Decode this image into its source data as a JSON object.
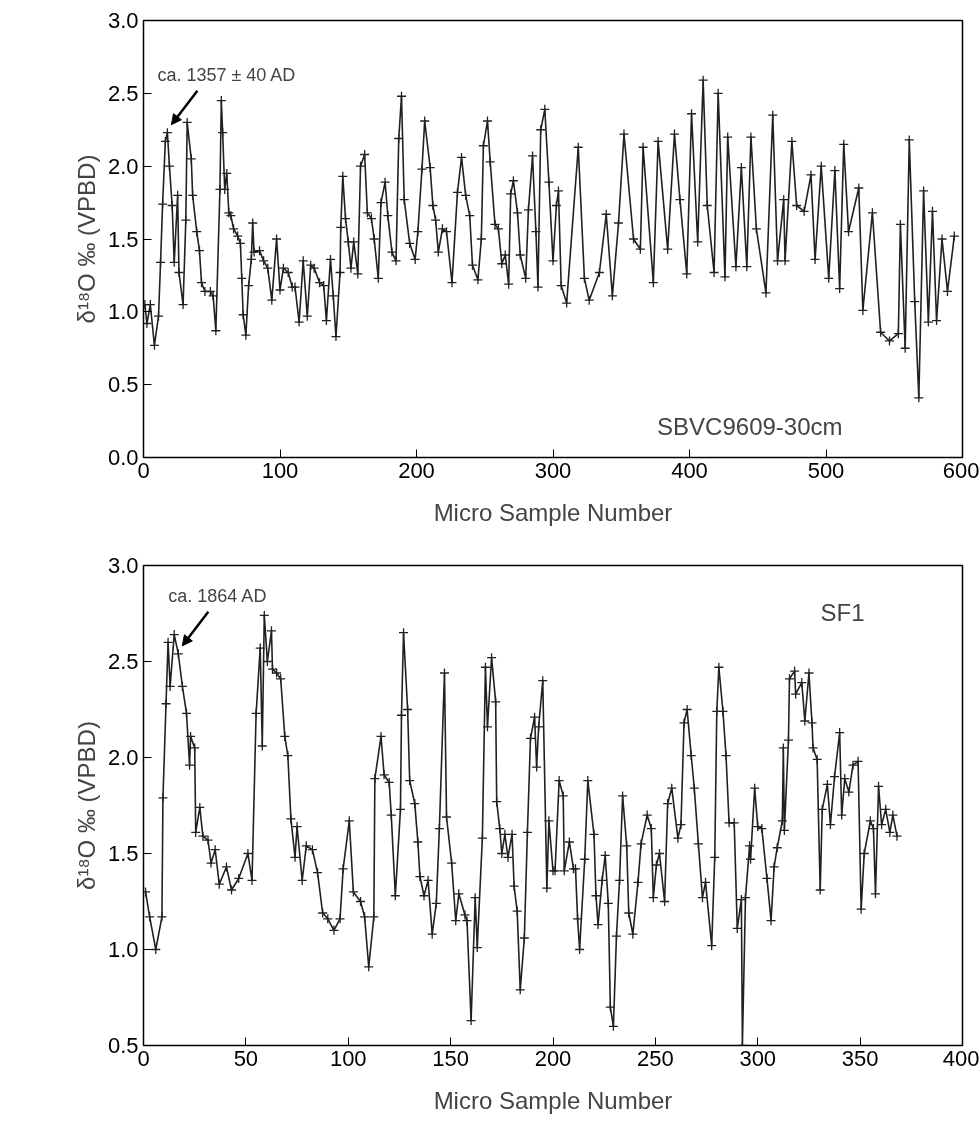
{
  "chart_data": [
    {
      "type": "line",
      "xlabel": "Micro Sample Number",
      "ylabel": "δ¹⁸O ‰ (VPBD)",
      "marker": "cross",
      "line_style": "solid",
      "grid": false,
      "xlim": [
        0,
        600
      ],
      "xticks": [
        0,
        100,
        200,
        300,
        400,
        500,
        600
      ],
      "ylim": [
        0,
        3
      ],
      "yticks": [
        {
          "value": 0,
          "label": "0.0"
        },
        0.5,
        {
          "value": 1,
          "label": "1.0"
        },
        1.5,
        {
          "value": 2,
          "label": "2.0"
        },
        2.5,
        {
          "value": 3,
          "label": "3.0"
        }
      ],
      "annotations": [
        {
          "text": "ca. 1357 ± 40 AD",
          "x": 17.5,
          "y": 2.23
        },
        "SBVC9609-30cm"
      ],
      "series": [
        {
          "color": "#231f20",
          "x": [
            1,
            2.5,
            5,
            8,
            11,
            12.5,
            14,
            16,
            17.5,
            19,
            21,
            22.5,
            25,
            26,
            29,
            31,
            32,
            35,
            36,
            39,
            41,
            42.5,
            45,
            49,
            51,
            53,
            56,
            57,
            58,
            59.5,
            61,
            62.5,
            64,
            66,
            69,
            71,
            72,
            73,
            75,
            77,
            79,
            80,
            81,
            85,
            88,
            91,
            94,
            97.5,
            100,
            102.5,
            106,
            109,
            111,
            114,
            117,
            120,
            122.5,
            125,
            129,
            132,
            134,
            137,
            139,
            141,
            144,
            144.5,
            146,
            148,
            150,
            152,
            154,
            157,
            159,
            162,
            164,
            167,
            169,
            172,
            174,
            177,
            179,
            182,
            185,
            187,
            189,
            191,
            195,
            199,
            201,
            204,
            206,
            210,
            212,
            214,
            216,
            219,
            222,
            226,
            230,
            233,
            236,
            239,
            241,
            245,
            247.5,
            249,
            252,
            254,
            257.5,
            260,
            262.5,
            265,
            267.5,
            269,
            271,
            274,
            276,
            280,
            282,
            285,
            287.5,
            289,
            291,
            294,
            297,
            300,
            302.5,
            304,
            306,
            310,
            318.5,
            323,
            326.5,
            334,
            339,
            343.5,
            348,
            352,
            359,
            364,
            366,
            373.5,
            377,
            384,
            389,
            393,
            398,
            401.5,
            406,
            410,
            413,
            418,
            421,
            426,
            428,
            434,
            438,
            442,
            445,
            449,
            456,
            461,
            464.5,
            469,
            470,
            475,
            478.5,
            484,
            489,
            492,
            496.5,
            502,
            506.5,
            510,
            513,
            516.5,
            524,
            527,
            534,
            540,
            546.5,
            553,
            554.5,
            558,
            561,
            565,
            568,
            571.5,
            575,
            578,
            581,
            585,
            589,
            594
          ],
          "values": [
            1.05,
            0.92,
            1.05,
            0.77,
            0.97,
            1.34,
            1.74,
            2.17,
            2.23,
            2.0,
            1.73,
            1.34,
            1.8,
            1.27,
            1.05,
            1.63,
            2.3,
            2.05,
            1.8,
            1.55,
            1.42,
            1.2,
            1.14,
            1.14,
            1.11,
            0.87,
            1.84,
            2.45,
            2.23,
            1.84,
            1.95,
            1.68,
            1.66,
            1.57,
            1.52,
            1.47,
            1.23,
            0.98,
            0.84,
            1.18,
            1.36,
            1.61,
            1.41,
            1.42,
            1.35,
            1.3,
            1.08,
            1.5,
            1.15,
            1.3,
            1.27,
            1.17,
            1.17,
            0.93,
            1.35,
            0.97,
            1.32,
            1.3,
            1.2,
            1.18,
            0.94,
            1.36,
            1.11,
            0.83,
            1.27,
            1.58,
            1.93,
            1.64,
            1.48,
            1.3,
            1.48,
            1.26,
            2.0,
            2.08,
            1.68,
            1.64,
            1.5,
            1.23,
            1.75,
            1.89,
            1.66,
            1.41,
            1.35,
            2.19,
            2.48,
            1.77,
            1.47,
            1.36,
            1.55,
            1.98,
            2.31,
            1.99,
            1.73,
            1.63,
            1.41,
            1.57,
            1.55,
            1.2,
            1.82,
            2.06,
            1.8,
            1.66,
            1.32,
            1.22,
            1.5,
            2.14,
            2.31,
            2.03,
            1.6,
            1.57,
            1.33,
            1.39,
            1.19,
            1.81,
            1.9,
            1.68,
            1.39,
            1.23,
            1.7,
            2.07,
            1.55,
            1.17,
            2.25,
            2.39,
            1.89,
            1.35,
            1.73,
            1.83,
            1.18,
            1.06,
            2.13,
            1.23,
            1.08,
            1.27,
            1.67,
            1.11,
            1.61,
            2.22,
            1.5,
            1.43,
            2.13,
            1.2,
            2.17,
            1.43,
            2.22,
            1.77,
            1.26,
            2.36,
            1.48,
            2.59,
            1.73,
            1.27,
            2.5,
            1.24,
            2.2,
            1.31,
            1.99,
            1.31,
            2.2,
            1.57,
            1.13,
            2.35,
            1.35,
            1.77,
            1.35,
            2.17,
            1.73,
            1.69,
            1.94,
            1.36,
            2.0,
            1.23,
            1.97,
            1.16,
            2.15,
            1.55,
            1.85,
            1.01,
            1.68,
            0.86,
            0.8,
            0.85,
            1.6,
            0.75,
            2.18,
            1.07,
            0.41,
            1.83,
            0.93,
            1.69,
            0.94,
            1.5,
            1.14,
            1.52
          ]
        }
      ]
    },
    {
      "type": "line",
      "xlabel": "Micro Sample Number",
      "ylabel": "δ¹⁸O ‰ (VPBD)",
      "marker": "cross",
      "line_style": "solid",
      "grid": false,
      "xlim": [
        0,
        400
      ],
      "xticks": [
        0,
        50,
        100,
        150,
        200,
        250,
        300,
        350,
        400
      ],
      "ylim": [
        0.5,
        3
      ],
      "yticks": [
        0.5,
        {
          "value": 1,
          "label": "1.0"
        },
        1.5,
        {
          "value": 2,
          "label": "2.0"
        },
        2.5,
        {
          "value": 3,
          "label": "3.0"
        }
      ],
      "annotations": [
        {
          "text": "ca. 1864 AD",
          "x": 17,
          "y": 2.54
        },
        "SF1"
      ],
      "series": [
        {
          "color": "#231f20",
          "x": [
            1,
            3,
            6,
            9,
            9.5,
            11,
            12,
            13,
            15,
            17,
            19,
            21,
            22.5,
            23,
            25,
            25.5,
            27.5,
            29,
            31.5,
            33,
            35,
            37,
            40.5,
            43,
            46.5,
            51,
            53,
            55,
            57,
            58,
            59,
            60.5,
            62.5,
            63,
            65,
            67,
            69,
            70.5,
            72,
            74,
            75,
            77.5,
            79.5,
            82.5,
            85,
            87.5,
            90,
            93,
            96,
            97.5,
            100.5,
            102.5,
            106,
            108,
            110,
            112.5,
            113,
            116,
            117.5,
            120,
            121,
            123,
            125.5,
            126,
            127,
            129,
            130,
            132.5,
            134,
            135,
            137,
            139,
            141,
            143,
            144.5,
            147,
            148,
            150.5,
            152.5,
            154,
            157,
            158,
            160,
            162,
            163,
            165.5,
            167,
            168,
            170,
            172,
            172.5,
            174,
            175,
            176.5,
            178,
            180,
            181,
            182.5,
            184,
            186,
            187.5,
            189,
            191,
            192,
            193,
            195,
            197,
            198,
            200,
            201,
            203,
            205,
            205.5,
            208,
            210,
            211,
            212,
            213,
            215.5,
            217,
            220,
            221,
            222,
            224,
            225.5,
            227,
            228,
            229.5,
            231,
            232.5,
            234,
            236,
            237,
            239,
            241.5,
            243,
            246,
            248,
            249,
            250.5,
            252,
            254.5,
            256,
            258,
            261,
            262.5,
            264,
            265.5,
            267.5,
            269,
            271,
            273,
            274.5,
            277.5,
            279,
            280,
            281,
            283,
            284.5,
            286,
            288.5,
            290,
            292,
            292.5,
            294,
            296,
            296.5,
            298.5,
            300,
            302,
            304.5,
            306.5,
            308,
            309.5,
            312,
            312.5,
            313,
            315,
            315.5,
            318,
            318.5,
            321.5,
            323,
            325,
            326.5,
            327,
            329,
            330.5,
            331.5,
            334,
            335.5,
            337.5,
            340,
            341,
            342.5,
            344.5,
            346.5,
            349,
            350.5,
            352,
            355,
            356.5,
            357.5,
            359,
            360.5,
            362.5,
            364.5,
            366,
            368
          ],
          "values": [
            1.3,
            1.17,
            1.0,
            1.17,
            1.79,
            2.28,
            2.6,
            2.37,
            2.64,
            2.54,
            2.37,
            2.23,
            1.96,
            2.11,
            2.05,
            1.61,
            1.74,
            1.59,
            1.57,
            1.45,
            1.52,
            1.34,
            1.43,
            1.31,
            1.37,
            1.5,
            1.36,
            2.23,
            2.57,
            2.06,
            2.74,
            2.5,
            2.66,
            2.46,
            2.44,
            2.41,
            2.11,
            2.01,
            1.68,
            1.48,
            1.64,
            1.36,
            1.54,
            1.52,
            1.4,
            1.19,
            1.16,
            1.1,
            1.16,
            1.42,
            1.67,
            1.3,
            1.25,
            1.17,
            0.91,
            1.17,
            1.89,
            2.11,
            1.91,
            1.87,
            1.7,
            1.28,
            1.73,
            2.22,
            2.65,
            2.25,
            1.88,
            1.76,
            1.56,
            1.38,
            1.28,
            1.36,
            1.08,
            1.24,
            1.63,
            2.44,
            1.69,
            1.45,
            1.15,
            1.29,
            1.18,
            1.15,
            0.63,
            1.27,
            1.01,
            1.58,
            2.47,
            2.16,
            2.52,
            2.29,
            1.77,
            1.63,
            1.5,
            1.6,
            1.48,
            1.6,
            1.33,
            1.2,
            0.79,
            1.06,
            1.61,
            2.1,
            2.21,
            1.95,
            2.16,
            2.4,
            1.32,
            1.67,
            1.41,
            1.41,
            1.88,
            1.8,
            1.41,
            1.56,
            1.42,
            1.42,
            1.16,
            1.0,
            1.47,
            1.88,
            1.6,
            1.28,
            1.13,
            1.36,
            1.49,
            1.24,
            0.7,
            0.6,
            1.07,
            1.36,
            1.8,
            1.54,
            1.19,
            1.08,
            1.35,
            1.55,
            1.7,
            1.63,
            1.27,
            1.44,
            1.5,
            1.25,
            1.76,
            1.84,
            1.58,
            1.65,
            2.18,
            2.25,
            2.01,
            1.84,
            1.55,
            1.27,
            1.35,
            1.02,
            1.48,
            2.24,
            2.47,
            2.24,
            2.01,
            1.66,
            1.66,
            1.11,
            1.26,
            0.5,
            1.27,
            1.54,
            1.47,
            1.84,
            1.64,
            1.63,
            1.37,
            1.15,
            1.43,
            1.53,
            1.67,
            2.05,
            1.62,
            2.09,
            2.41,
            2.45,
            2.33,
            2.39,
            2.19,
            2.44,
            2.18,
            2.05,
            1.99,
            1.31,
            1.73,
            1.86,
            1.65,
            1.9,
            2.13,
            1.7,
            1.89,
            1.82,
            1.96,
            1.98,
            1.21,
            1.5,
            1.67,
            1.63,
            1.29,
            1.85,
            1.65,
            1.73,
            1.61,
            1.7,
            1.59
          ]
        }
      ]
    }
  ]
}
